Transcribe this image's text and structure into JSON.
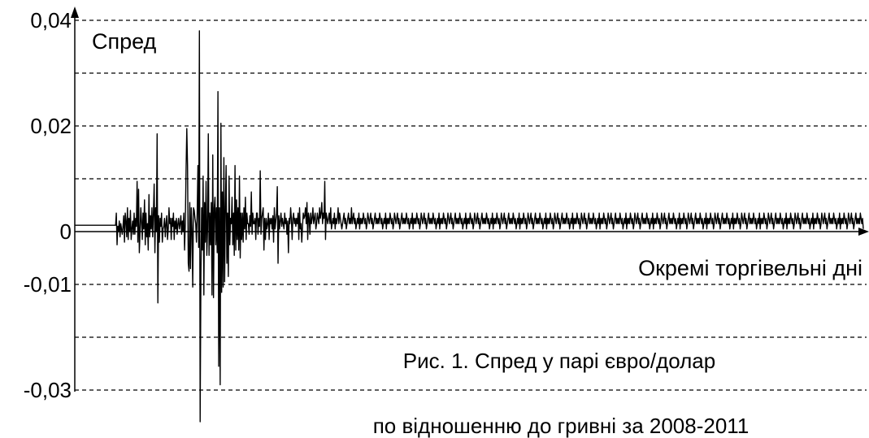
{
  "chart_data": {
    "type": "line",
    "ylabel": "Спред",
    "xlabel": "Окремі торгівельні дні",
    "caption": [
      "Рис. 1. Спред у парі євро/долар",
      "по відношенню до гривні за 2008-2011"
    ],
    "ylim": [
      -0.03,
      0.04
    ],
    "y_ticks": [
      "0,04",
      "0,02",
      "0",
      "-0,01",
      "-0,03"
    ],
    "y_tick_values": [
      0.04,
      0.02,
      0,
      -0.01,
      -0.03
    ],
    "grid_values": [
      0.04,
      0.03,
      0.02,
      0.01,
      -0.01,
      -0.02,
      -0.03
    ],
    "grid": "horizontal dashed",
    "x_count": 1000,
    "series": [
      {
        "values": [
          0.0012,
          0.0012,
          0.0012,
          0.0012,
          0.0012,
          0.0012,
          0.0012,
          0.0012,
          0.0012,
          0.0012,
          0.0012,
          0.0012,
          0.0012,
          0.0012,
          0.0012,
          0.0012,
          0.0012,
          0.0012,
          0.0012,
          0.0012,
          0.0012,
          0.0012,
          0.0012,
          0.0012,
          0.0012,
          0.0012,
          0.0012,
          0.0012,
          0.0012,
          0.0012,
          0.0012,
          0.0012,
          0.0012,
          0.0012,
          0.0012,
          0.0012,
          0.0012,
          0.0012,
          0.0012,
          0.0012,
          0.0012,
          0.0012,
          0.0012,
          0.0012,
          0.0012,
          0.0012,
          0.0012,
          0.0012,
          0.0012,
          0.0012,
          0.0012,
          0.0012,
          0.0012,
          0.0012,
          0.0012,
          0.0012,
          0.0035,
          -0.0025,
          0.001,
          0.0,
          0.002,
          -0.001,
          0.0015,
          0.0005,
          -0.0005,
          0.001,
          0.003,
          -0.002,
          0.0035,
          0.002,
          -0.001,
          0.0045,
          -0.0015,
          0.0025,
          0.0,
          0.004,
          -0.0015,
          0.0005,
          0.002,
          -0.0005,
          0.0035,
          -0.0005,
          0.0025,
          0.001,
          0.0095,
          -0.002,
          0.008,
          -0.004,
          0.0,
          0.0045,
          0.002,
          -0.0015,
          0.0035,
          0.0005,
          0.006,
          -0.0025,
          0.0035,
          -0.001,
          0.0015,
          -0.0035,
          0.007,
          -0.001,
          0.003,
          0.0005,
          0.0045,
          -0.001,
          0.0035,
          0.009,
          -0.004,
          0.0045,
          0.0,
          0.0185,
          -0.0135,
          0.003,
          -0.002,
          0.0025,
          0.001,
          0.0035,
          -0.002,
          0.0005,
          0.001,
          0.0025,
          -0.001,
          0.0015,
          0.003,
          -0.0015,
          0.0005,
          0.0045,
          0.0015,
          0.0025,
          -0.0015,
          0.0025,
          0.001,
          0.0035,
          -0.0015,
          0.002,
          0.0005,
          0.0025,
          -0.0005,
          0.0015,
          0.0025,
          0.0005,
          0.0015,
          0.003,
          -0.0005,
          0.002,
          0.0,
          0.0035,
          -0.0035,
          0.0015,
          0.0115,
          0.0195,
          0.0125,
          -0.006,
          -0.0075,
          0.0055,
          -0.007,
          0.0045,
          0.0005,
          -0.0105,
          0.0045,
          0.004,
          0.0025,
          0.0015,
          -0.002,
          0.0035,
          0.0125,
          -0.003,
          0.038,
          -0.036,
          -0.0085,
          0.0045,
          -0.0035,
          0.0105,
          -0.012,
          0.0055,
          -0.002,
          0.0095,
          -0.0045,
          0.0005,
          0.0185,
          -0.0045,
          0.0035,
          -0.0025,
          0.0055,
          -0.012,
          0.0145,
          -0.0125,
          0.0045,
          0.0065,
          -0.0025,
          0.0045,
          -0.004,
          0.0265,
          -0.0255,
          0.0045,
          -0.029,
          0.0205,
          -0.0115,
          0.0075,
          -0.0105,
          0.014,
          -0.0095,
          0.0045,
          0.0125,
          -0.006,
          0.0035,
          -0.0085,
          0.0105,
          -0.0025,
          0.0025,
          0.0015,
          0.0065,
          -0.0025,
          0.0035,
          -0.0045,
          0.0125,
          -0.0035,
          0.006,
          -0.0015,
          0.0045,
          -0.0035,
          0.0105,
          -0.005,
          0.0035,
          -0.0015,
          0.0035,
          -0.002,
          0.0045,
          0.0005,
          0.0065,
          -0.0015,
          0.0035,
          0.0015,
          0.0015,
          -0.0005,
          0.003,
          0.001,
          0.0075,
          -0.0005,
          0.0035,
          0.0015,
          0.0015,
          0.0025,
          -0.0015,
          0.0035,
          0.0035,
          -0.0005,
          0.0025,
          0.001,
          0.0115,
          -0.0005,
          0.0025,
          0.0035,
          0.0045,
          -0.0035,
          0.0025,
          -0.0015,
          0.0025,
          0.0005,
          0.0015,
          0.0035,
          -0.0015,
          0.0025,
          0.0015,
          0.0025,
          0.0005,
          0.003,
          -0.002,
          0.0045,
          0.0005,
          0.002,
          0.0035,
          0.0085,
          -0.006,
          0.003,
          0.0005,
          0.002,
          0.0035,
          0.001,
          0.0025,
          0.0015,
          0.0005,
          0.0035,
          0.0015,
          0.0025,
          -0.0005,
          0.002,
          -0.004,
          0.0025,
          0.0015,
          0.0045,
          0.0025,
          -0.0015,
          0.0025,
          0.0035,
          0.0015,
          0.0025,
          0.001,
          0.0025,
          0.0015,
          0.0035,
          -0.0015,
          0.0045,
          0.0005,
          0.0015,
          -0.002,
          0.001,
          0.0035,
          0.0025,
          0.003,
          0.0045,
          0.0015,
          0.0055,
          -0.0015,
          0.0035,
          0.0025,
          -0.0005,
          0.0035,
          0.0015,
          0.0025,
          0.0045,
          0.0015,
          0.0025,
          0.0035,
          0.0005,
          0.0015,
          0.0035,
          0.0025,
          0.0015,
          0.0045,
          0.0025,
          0.0035,
          0.0055,
          0.0015,
          0.0035,
          0.0025,
          0.0095,
          -0.0015,
          0.0035,
          0.0025,
          0.0015,
          0.0025,
          0.0035,
          0.0015,
          0.0045,
          0.0005,
          0.0015,
          0.0025,
          0.0015,
          0.0035,
          0.0005,
          0.0025,
          0.0015,
          0.0025,
          0.0045,
          0.0015,
          0.0035,
          0.0025,
          0.0015,
          0.0005,
          0.0015,
          0.0025,
          0.0035,
          0.0015,
          0.0025,
          0.0005,
          0.0015,
          0.0025,
          0.0035,
          0.0015,
          0.0025,
          0.0015,
          0.0045,
          0.0015,
          0.0025,
          0.0035,
          0.0015,
          0.0025,
          0.0005,
          0.0015,
          0.0025,
          0.0015,
          0.0035,
          0.0005,
          0.0025,
          0.0015,
          0.0025,
          0.0015,
          0.0035,
          0.0025,
          0.0015,
          0.0025,
          0.0005,
          0.0015,
          0.0035,
          0.0025,
          0.0015,
          0.0025,
          0.0035,
          0.0015,
          0.0025,
          0.0005,
          0.0015,
          0.0025,
          0.0035,
          0.0015,
          0.0025,
          0.0015,
          0.0025,
          0.0015,
          0.0035,
          0.0025,
          0.0015,
          0.0025,
          0.0005,
          0.0015,
          0.0025,
          0.0015,
          0.0035,
          0.0005,
          0.0025,
          0.0015,
          0.0025,
          0.0015,
          0.0035,
          0.0025,
          0.0015,
          0.0025,
          0.0005,
          0.0015,
          0.0035,
          0.0025,
          0.0015,
          0.0025,
          0.0035,
          0.0015,
          0.0025,
          0.0005,
          0.0015,
          0.0025,
          0.0035,
          0.0015,
          0.0025,
          0.0015,
          0.0025,
          0.0015,
          0.0035,
          0.0025,
          0.0015,
          0.0025,
          0.0005,
          0.0015,
          0.0025,
          0.0015,
          0.0035,
          0.0005,
          0.0025,
          0.0015,
          0.0025,
          0.0015,
          0.0035,
          0.0025,
          0.0015,
          0.0025,
          0.0005,
          0.0015,
          0.0035,
          0.0025,
          0.0015,
          0.0025,
          0.0035,
          0.0015,
          0.0025,
          0.0005,
          0.0015,
          0.0025,
          0.0035,
          0.0015,
          0.0025,
          0.0015,
          0.0025,
          0.0015,
          0.0035,
          0.0025,
          0.0015,
          0.0025,
          0.0005,
          0.0015,
          0.0025,
          0.0015,
          0.0035,
          0.0005,
          0.0025,
          0.0015,
          0.0025,
          0.0015,
          0.0035,
          0.0025,
          0.0015,
          0.0025,
          0.0005,
          0.0015,
          0.0035,
          0.0025,
          0.0015,
          0.0025,
          0.0035,
          0.0015,
          0.0025,
          0.0005,
          0.0015,
          0.0025,
          0.0035,
          0.0015,
          0.0025,
          0.0015,
          0.0025,
          0.0015,
          0.0035,
          0.0025,
          0.0015,
          0.0025,
          0.0005,
          0.0015,
          0.0025,
          0.0015,
          0.0035,
          0.0005,
          0.0025,
          0.0015,
          0.0025,
          0.0015,
          0.0035,
          0.0025,
          0.0015,
          0.0025,
          0.0005,
          0.0015,
          0.0035,
          0.0025,
          0.0015,
          0.0025,
          0.0035,
          0.0015,
          0.0025,
          0.0005,
          0.0015,
          0.0025,
          0.0035,
          0.0015,
          0.0025,
          0.0015,
          0.0025,
          0.0015,
          0.0035,
          0.0025,
          0.0015,
          0.0025,
          0.0005,
          0.0015,
          0.0025,
          0.0015,
          0.0035,
          0.0005,
          0.0025,
          0.0015,
          0.0025,
          0.0015,
          0.0035,
          0.0025,
          0.0015,
          0.0025,
          0.0005,
          0.0015,
          0.0035,
          0.0025,
          0.0015,
          0.0025,
          0.0035,
          0.0015,
          0.0025,
          0.0005,
          0.0015,
          0.0025,
          0.0035,
          0.0015,
          0.0025,
          0.0015,
          0.0025,
          0.0015,
          0.0035,
          0.0025,
          0.0015,
          0.0025,
          0.0005,
          0.0015,
          0.0025,
          0.0015,
          0.0035,
          0.0005,
          0.0025,
          0.0015,
          0.0025,
          0.0015,
          0.0035,
          0.0025,
          0.0015,
          0.0025,
          0.0005,
          0.0015,
          0.0035,
          0.0025,
          0.0015,
          0.0025,
          0.0035,
          0.0015,
          0.0025,
          0.0005,
          0.0015,
          0.0025,
          0.0035,
          0.0015,
          0.0025,
          0.0015,
          0.0025,
          0.0015,
          0.0035,
          0.0025,
          0.0015,
          0.0025,
          0.0005,
          0.0015,
          0.0025,
          0.0015,
          0.0035,
          0.0005,
          0.0025,
          0.0015,
          0.0025,
          0.0015,
          0.0035,
          0.0025,
          0.0015,
          0.0025,
          0.0005,
          0.0015,
          0.0035,
          0.0025,
          0.0015,
          0.0025,
          0.0035,
          0.0015,
          0.0025,
          0.0005,
          0.0015,
          0.0025,
          0.0035,
          0.0015,
          0.0025,
          0.0015,
          0.0025,
          0.0015,
          0.0035,
          0.0025,
          0.0015,
          0.0025,
          0.0005,
          0.0015,
          0.0025,
          0.0015,
          0.0035,
          0.0005,
          0.0025,
          0.0015,
          0.0025,
          0.0015,
          0.0035,
          0.0025,
          0.0015,
          0.0025,
          0.0005,
          0.0015,
          0.0035,
          0.0025,
          0.0015,
          0.0025,
          0.0035,
          0.0015,
          0.0025,
          0.0005,
          0.0015,
          0.0025,
          0.0035,
          0.0015,
          0.0025,
          0.0015,
          0.0025,
          0.0015,
          0.0035,
          0.0025,
          0.0015,
          0.0025,
          0.0005,
          0.0015,
          0.0025,
          0.0015,
          0.0035,
          0.0005,
          0.0025,
          0.0015,
          0.0025,
          0.0015,
          0.0035,
          0.0025,
          0.0015,
          0.0025,
          0.0005,
          0.0015,
          0.0035,
          0.0025,
          0.0015,
          0.0025,
          0.0035,
          0.0015,
          0.0025,
          0.0005,
          0.0015,
          0.0025,
          0.0035,
          0.0015,
          0.0025,
          0.0015,
          0.0025,
          0.0015,
          0.0035,
          0.0025,
          0.0015,
          0.0025,
          0.0005,
          0.0015,
          0.0025,
          0.0015,
          0.0035,
          0.0005,
          0.0025,
          0.0015,
          0.0025,
          0.0015,
          0.0035,
          0.0025,
          0.0015,
          0.0025,
          0.0005,
          0.0015,
          0.0035,
          0.0025,
          0.0015,
          0.0025,
          0.0035,
          0.0015,
          0.0025,
          0.0005,
          0.0015,
          0.0025,
          0.0035,
          0.0015,
          0.0025,
          0.0015,
          0.0025,
          0.0015,
          0.0035,
          0.0025,
          0.0015,
          0.0025,
          0.0005,
          0.0015,
          0.0025,
          0.0015,
          0.0035,
          0.0005,
          0.0025,
          0.0015,
          0.0025,
          0.0015,
          0.0035,
          0.0025,
          0.0015,
          0.0025,
          0.0005,
          0.0015,
          0.0035,
          0.0025,
          0.0015,
          0.0025,
          0.0035,
          0.0015,
          0.0025,
          0.0005,
          0.0015,
          0.0025,
          0.0035,
          0.0015,
          0.0025,
          0.0015,
          0.0025,
          0.0015,
          0.0035,
          0.0025,
          0.0015,
          0.0025,
          0.0005,
          0.0015,
          0.0025,
          0.0015,
          0.0035,
          0.0005,
          0.0025,
          0.0015,
          0.0025,
          0.0015,
          0.0035,
          0.0025,
          0.0015,
          0.0025,
          0.0005,
          0.0015,
          0.0035,
          0.0025,
          0.0015,
          0.0025,
          0.0035,
          0.0015,
          0.0025,
          0.0005,
          0.0015,
          0.0025,
          0.0035,
          0.0015,
          0.0025,
          0.0015,
          0.0025,
          0.0015,
          0.0035,
          0.0025,
          0.0015,
          0.0025,
          0.0005,
          0.0015,
          0.0025,
          0.0015,
          0.0035,
          0.0005,
          0.0025,
          0.0015,
          0.0025,
          0.0015,
          0.0035,
          0.0025,
          0.0015,
          0.0025,
          0.0005,
          0.0015,
          0.0035,
          0.0025,
          0.0015,
          0.0025,
          0.0035,
          0.0015,
          0.0025,
          0.0005,
          0.0015,
          0.0025,
          0.0035,
          0.0015,
          0.0025,
          0.0015,
          0.0025,
          0.0015,
          0.0035,
          0.0025,
          0.0015,
          0.0025,
          0.0005,
          0.0015,
          0.0025,
          0.0015,
          0.0035,
          0.0005,
          0.0025,
          0.0015,
          0.0025,
          0.0015,
          0.0035,
          0.0025,
          0.0015,
          0.0025,
          0.0005,
          0.0015,
          0.0035,
          0.0025,
          0.0015,
          0.0025,
          0.0035,
          0.0015,
          0.0025,
          0.0005,
          0.0015,
          0.0025,
          0.0035,
          0.0015,
          0.0025,
          0.0015,
          0.0025,
          0.0015,
          0.0035,
          0.0025,
          0.0015,
          0.0025,
          0.0005,
          0.0015,
          0.0025,
          0.0015,
          0.0035,
          0.0005,
          0.0025,
          0.0015,
          0.0025,
          0.0015,
          0.0035,
          0.0025,
          0.0015,
          0.0025,
          0.0005,
          0.0015,
          0.0035,
          0.0025,
          0.0015,
          0.0025,
          0.0035,
          0.0015,
          0.0025,
          0.0005,
          0.0015,
          0.0025,
          0.0035,
          0.0015,
          0.0025,
          0.0015,
          0.0025,
          0.0015,
          0.0035,
          0.0025,
          0.0015,
          0.0025,
          0.0005,
          0.0015,
          0.0025,
          0.0015,
          0.0035,
          0.0005,
          0.0025,
          0.0015,
          0.0025,
          0.0015,
          0.0035,
          0.0025,
          0.0015,
          0.0025,
          0.0005,
          0.0015,
          0.0035,
          0.0025,
          0.0015,
          0.0025,
          0.0035,
          0.0015,
          0.0025,
          0.0005,
          0.0015,
          0.0025,
          0.0035,
          0.0015,
          0.0025,
          0.0015,
          0.0025,
          0.0015,
          0.0035,
          0.0025,
          0.0015,
          0.0025,
          0.0005,
          0.0015,
          0.0025,
          0.0015,
          0.0035,
          0.0005,
          0.0025,
          0.0015,
          0.0025,
          0.0015,
          0.0035,
          0.0025,
          0.0015,
          0.0025,
          0.0005,
          0.0015,
          0.0035,
          0.0025,
          0.0015,
          0.0025,
          0.0035,
          0.0015,
          0.0025,
          0.0005,
          0.0015,
          0.0025,
          0.0035,
          0.0015,
          0.0025,
          0.0015,
          0.0025,
          0.0015,
          0.0035,
          0.0025,
          0.0015,
          0.0025,
          0.0005,
          0.0015,
          0.0025,
          0.0015,
          0.0035,
          0.0005,
          0.0025,
          0.0015,
          0.0025,
          0.0015,
          0.0035,
          0.0025,
          0.0015,
          0.0025,
          0.0005,
          0.0015,
          0.0035,
          0.0025,
          0.0015,
          0.0025,
          0.0035,
          0.0015,
          0.0025,
          0.0005,
          0.0015,
          0.0025,
          0.0035,
          0.0015,
          0.0025,
          0.0015,
          0.0025,
          0.0015,
          0.0035,
          0.0025,
          0.0015,
          0.0025,
          0.0005
        ]
      }
    ]
  }
}
